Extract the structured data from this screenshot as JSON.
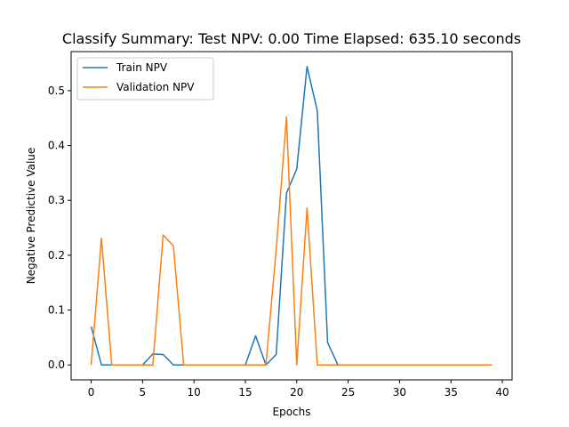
{
  "chart_data": {
    "type": "line",
    "title": "Classify Summary: Test NPV: 0.00 Time Elapsed: 635.10 seconds",
    "xlabel": "Epochs",
    "ylabel": "Negative Predictive Value",
    "xlim": [
      -1.95,
      40.95
    ],
    "ylim": [
      -0.0272,
      0.5712
    ],
    "xticks": [
      0,
      5,
      10,
      15,
      20,
      25,
      30,
      35,
      40
    ],
    "yticks": [
      0.0,
      0.1,
      0.2,
      0.3,
      0.4,
      0.5
    ],
    "xtick_labels": [
      "0",
      "5",
      "10",
      "15",
      "20",
      "25",
      "30",
      "35",
      "40"
    ],
    "ytick_labels": [
      "0.0",
      "0.1",
      "0.2",
      "0.3",
      "0.4",
      "0.5"
    ],
    "grid": false,
    "legend_position": "top-left",
    "x": [
      0,
      1,
      2,
      3,
      4,
      5,
      6,
      7,
      8,
      9,
      10,
      11,
      12,
      13,
      14,
      15,
      16,
      17,
      18,
      19,
      20,
      21,
      22,
      23,
      24,
      25,
      26,
      27,
      28,
      29,
      30,
      31,
      32,
      33,
      34,
      35,
      36,
      37,
      38,
      39
    ],
    "series": [
      {
        "name": "Train NPV",
        "color": "#1f77b4",
        "values": [
          0.07,
          0,
          0,
          0,
          0,
          0,
          0.02,
          0.019,
          0,
          0,
          0,
          0,
          0,
          0,
          0,
          0,
          0.053,
          0,
          0.019,
          0.313,
          0.357,
          0.544,
          0.463,
          0.041,
          0,
          0,
          0,
          0,
          0,
          0,
          0,
          0,
          0,
          0,
          0,
          0,
          0,
          0,
          0,
          0
        ]
      },
      {
        "name": "Validation NPV",
        "color": "#ff7f0e",
        "values": [
          0,
          0.231,
          0,
          0,
          0,
          0,
          0,
          0.237,
          0.217,
          0,
          0,
          0,
          0,
          0,
          0,
          0,
          0,
          0,
          0.21,
          0.452,
          0,
          0.286,
          0,
          0,
          0,
          0,
          0,
          0,
          0,
          0,
          0,
          0,
          0,
          0,
          0,
          0,
          0,
          0,
          0,
          0
        ]
      }
    ]
  }
}
